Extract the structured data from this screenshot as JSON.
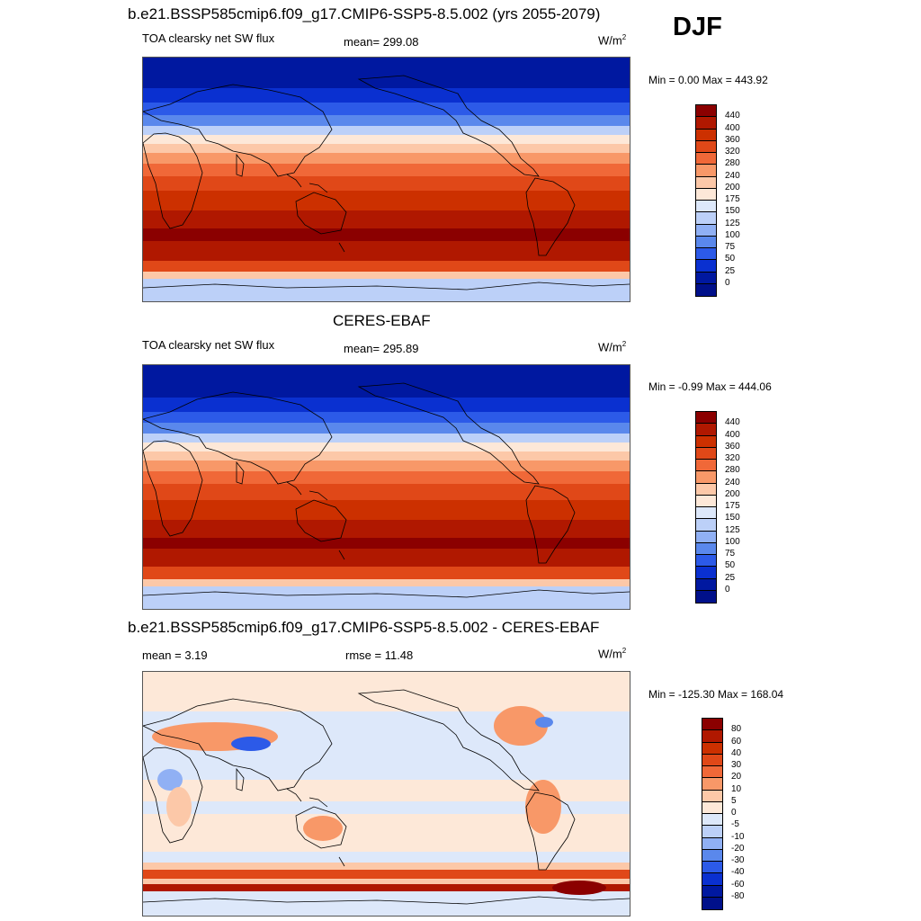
{
  "season": "DJF",
  "panels": [
    {
      "title": "b.e21.BSSP585cmip6.f09_g17.CMIP6-SSP5-8.5.002 (yrs 2055-2079)",
      "left_label": "TOA clearsky net SW flux",
      "center_label": "mean= 299.08",
      "units": "W/m",
      "units_sup": "2",
      "minmax": "Min =   0.00 Max = 443.92"
    },
    {
      "title": "CERES-EBAF",
      "left_label": "TOA clearsky net SW flux",
      "center_label": "mean= 295.89",
      "units": "W/m",
      "units_sup": "2",
      "minmax": "Min =  -0.99 Max = 444.06"
    },
    {
      "title": "b.e21.BSSP585cmip6.f09_g17.CMIP6-SSP5-8.5.002 - CERES-EBAF",
      "left_label": "mean =   3.19",
      "center_label": "rmse =  11.48",
      "units": "W/m",
      "units_sup": "2",
      "minmax": "Min = -125.30 Max = 168.04"
    }
  ],
  "colorbar_flux": {
    "labels": [
      "440",
      "400",
      "360",
      "320",
      "280",
      "240",
      "200",
      "175",
      "150",
      "125",
      "100",
      "75",
      "50",
      "25",
      "0"
    ],
    "colors": [
      "#8b0000",
      "#b01800",
      "#cc3000",
      "#e04818",
      "#f06838",
      "#f89868",
      "#fcc8a8",
      "#fde8d8",
      "#dde8fa",
      "#bcd0f8",
      "#90b0f4",
      "#5a88ec",
      "#2c5ae8",
      "#0a30d0",
      "#0018a0",
      "#00108a"
    ]
  },
  "colorbar_diff": {
    "labels": [
      "80",
      "60",
      "40",
      "30",
      "20",
      "10",
      "5",
      "0",
      "-5",
      "-10",
      "-20",
      "-30",
      "-40",
      "-60",
      "-80"
    ],
    "colors": [
      "#8b0000",
      "#b01800",
      "#cc3000",
      "#e04818",
      "#f06838",
      "#f89868",
      "#fcc8a8",
      "#fde8d8",
      "#dde8fa",
      "#bcd0f8",
      "#90b0f4",
      "#5a88ec",
      "#2c5ae8",
      "#0a30d0",
      "#0018a0",
      "#00108a"
    ]
  }
}
